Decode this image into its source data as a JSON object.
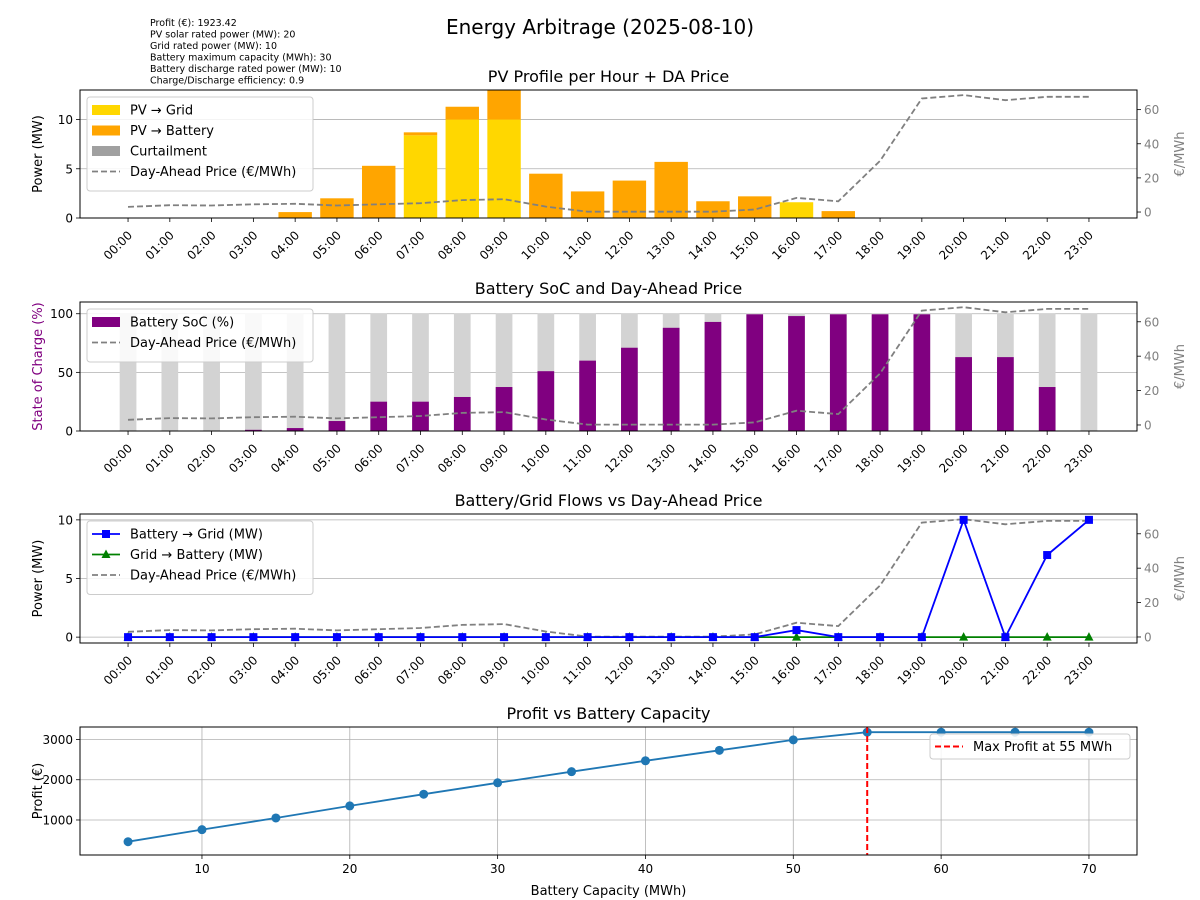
{
  "figure": {
    "title": "Energy Arbitrage (2025-08-10)",
    "info_lines": [
      "Profit (€): 1923.42",
      "PV solar rated power (MW): 20",
      "Grid rated power (MW): 10",
      "Battery maximum capacity (MWh): 30",
      "Battery discharge rated power (MW): 10",
      "Charge/Discharge efficiency: 0.9"
    ]
  },
  "colors": {
    "pv_grid": "#ffd700",
    "pv_battery": "#ffa500",
    "curtailment": "#a0a0a0",
    "price": "#808080",
    "soc": "#800080",
    "soc_bg": "#d3d3d3",
    "battery_to_grid": "#0000ff",
    "grid_to_battery": "#008000",
    "profit_line": "#1f77b4",
    "max_marker": "#ff0000",
    "grid": "#b0b0b0"
  },
  "chart_data": [
    {
      "type": "bar",
      "title": "PV Profile per Hour + DA Price",
      "ylabel": "Power (MW)",
      "y2label": "€/MWh",
      "ylim": [
        0,
        13
      ],
      "y2lim": [
        -3.5,
        71.5
      ],
      "yticks": [
        0,
        5,
        10
      ],
      "y2ticks": [
        0,
        20,
        40,
        60
      ],
      "categories": [
        "00:00",
        "01:00",
        "02:00",
        "03:00",
        "04:00",
        "05:00",
        "06:00",
        "07:00",
        "08:00",
        "09:00",
        "10:00",
        "11:00",
        "12:00",
        "13:00",
        "14:00",
        "15:00",
        "16:00",
        "17:00",
        "18:00",
        "19:00",
        "20:00",
        "21:00",
        "22:00",
        "23:00"
      ],
      "legend_position": "upper-left",
      "grid": "y",
      "series": [
        {
          "name": "PV → Grid",
          "kind": "bar",
          "values": [
            0,
            0,
            0,
            0,
            0,
            0,
            0,
            8.4,
            10,
            10,
            0,
            0,
            0,
            0,
            0,
            0,
            1.6,
            0,
            0,
            0,
            0,
            0,
            0,
            0
          ]
        },
        {
          "name": "PV → Battery",
          "kind": "bar",
          "values": [
            0,
            0,
            0,
            0,
            0.6,
            2.0,
            5.3,
            0.3,
            1.3,
            3.0,
            4.5,
            2.7,
            3.8,
            5.7,
            1.7,
            2.2,
            0,
            0.7,
            0,
            0,
            0,
            0,
            0,
            0
          ]
        },
        {
          "name": "Curtailment",
          "kind": "bar",
          "values": [
            0,
            0,
            0,
            0,
            0,
            0,
            0,
            0,
            0,
            0,
            0,
            0,
            0,
            0,
            0,
            0,
            0,
            0,
            0,
            0,
            0,
            0,
            0,
            0
          ]
        },
        {
          "name": "Day-Ahead Price (€/MWh)",
          "kind": "line",
          "axis": "right",
          "values": [
            3,
            4,
            3.8,
            4.5,
            4.8,
            3.8,
            4.5,
            5.2,
            7,
            7.5,
            3.2,
            0.2,
            0.2,
            0.2,
            0.2,
            1.5,
            8.3,
            6.3,
            30,
            66.5,
            68.5,
            65.5,
            67.5,
            67.5
          ]
        }
      ]
    },
    {
      "type": "bar",
      "title": "Battery SoC and Day-Ahead Price",
      "ylabel": "State of Charge (%)",
      "y2label": "€/MWh",
      "ylim": [
        0,
        110
      ],
      "y2lim": [
        -3.5,
        71.5
      ],
      "yticks": [
        0,
        50,
        100
      ],
      "y2ticks": [
        0,
        20,
        40,
        60
      ],
      "categories": [
        "00:00",
        "01:00",
        "02:00",
        "03:00",
        "04:00",
        "05:00",
        "06:00",
        "07:00",
        "08:00",
        "09:00",
        "10:00",
        "11:00",
        "12:00",
        "13:00",
        "14:00",
        "15:00",
        "16:00",
        "17:00",
        "18:00",
        "19:00",
        "20:00",
        "21:00",
        "22:00",
        "23:00"
      ],
      "legend_position": "upper-left",
      "grid": "y",
      "series": [
        {
          "name": "Battery SoC (%)",
          "kind": "bar",
          "values": [
            0,
            0,
            0,
            1,
            2.5,
            8.5,
            25,
            25,
            29,
            37.5,
            51,
            60,
            71,
            88,
            93,
            99.5,
            98,
            99.5,
            99.5,
            99.5,
            63,
            63,
            37.5,
            0
          ]
        },
        {
          "name": "Day-Ahead Price (€/MWh)",
          "kind": "line",
          "axis": "right",
          "values": [
            3,
            4,
            3.8,
            4.5,
            4.8,
            3.8,
            4.5,
            5.2,
            7,
            7.5,
            3.2,
            0.2,
            0.2,
            0.2,
            0.2,
            1.5,
            8.3,
            6.3,
            30,
            66.5,
            68.5,
            65.5,
            67.5,
            67.5
          ]
        }
      ]
    },
    {
      "type": "line",
      "title": "Battery/Grid Flows vs Day-Ahead Price",
      "ylabel": "Power (MW)",
      "y2label": "€/MWh",
      "ylim": [
        -0.5,
        10.5
      ],
      "y2lim": [
        -3.5,
        71.5
      ],
      "yticks": [
        0,
        5,
        10
      ],
      "y2ticks": [
        0,
        20,
        40,
        60
      ],
      "categories": [
        "00:00",
        "01:00",
        "02:00",
        "03:00",
        "04:00",
        "05:00",
        "06:00",
        "07:00",
        "08:00",
        "09:00",
        "10:00",
        "11:00",
        "12:00",
        "13:00",
        "14:00",
        "15:00",
        "16:00",
        "17:00",
        "18:00",
        "19:00",
        "20:00",
        "21:00",
        "22:00",
        "23:00"
      ],
      "legend_position": "upper-left",
      "grid": "y",
      "series": [
        {
          "name": "Battery → Grid (MW)",
          "kind": "line",
          "marker": "square",
          "values": [
            0,
            0,
            0,
            0,
            0,
            0,
            0,
            0,
            0,
            0,
            0,
            0,
            0,
            0,
            0,
            0,
            0.6,
            0,
            0,
            0,
            10,
            0,
            7,
            10
          ]
        },
        {
          "name": "Grid → Battery (MW)",
          "kind": "line",
          "marker": "triangle",
          "values": [
            0,
            0,
            0,
            0,
            0,
            0,
            0,
            0,
            0,
            0,
            0,
            0,
            0,
            0,
            0,
            0,
            0,
            0,
            0,
            0,
            0,
            0,
            0,
            0
          ]
        },
        {
          "name": "Day-Ahead Price (€/MWh)",
          "kind": "line",
          "axis": "right",
          "values": [
            3,
            4,
            3.8,
            4.5,
            4.8,
            3.8,
            4.5,
            5.2,
            7,
            7.5,
            3.2,
            0.2,
            0.2,
            0.2,
            0.2,
            1.5,
            8.3,
            6.3,
            30,
            66.5,
            68.5,
            65.5,
            67.5,
            67.5
          ]
        }
      ]
    },
    {
      "type": "line",
      "title": "Profit vs Battery Capacity",
      "xlabel": "Battery Capacity (MWh)",
      "ylabel": "Profit (€)",
      "xlim": [
        1.75,
        73.25
      ],
      "ylim": [
        130,
        3310
      ],
      "xticks": [
        10,
        20,
        30,
        40,
        50,
        60,
        70
      ],
      "yticks": [
        1000,
        2000,
        3000
      ],
      "legend_position": "upper-right",
      "grid": "both",
      "x": [
        5,
        10,
        15,
        20,
        25,
        30,
        35,
        40,
        45,
        50,
        55,
        60,
        65,
        70
      ],
      "series": [
        {
          "name": "",
          "kind": "line",
          "marker": "circle",
          "values": [
            460,
            760,
            1050,
            1350,
            1640,
            1923.42,
            2200,
            2470,
            2730,
            2990,
            3180,
            3180,
            3180,
            3180
          ]
        }
      ],
      "annotations": [
        {
          "kind": "vline",
          "x": 55,
          "label": "Max Profit at 55 MWh"
        }
      ]
    }
  ]
}
